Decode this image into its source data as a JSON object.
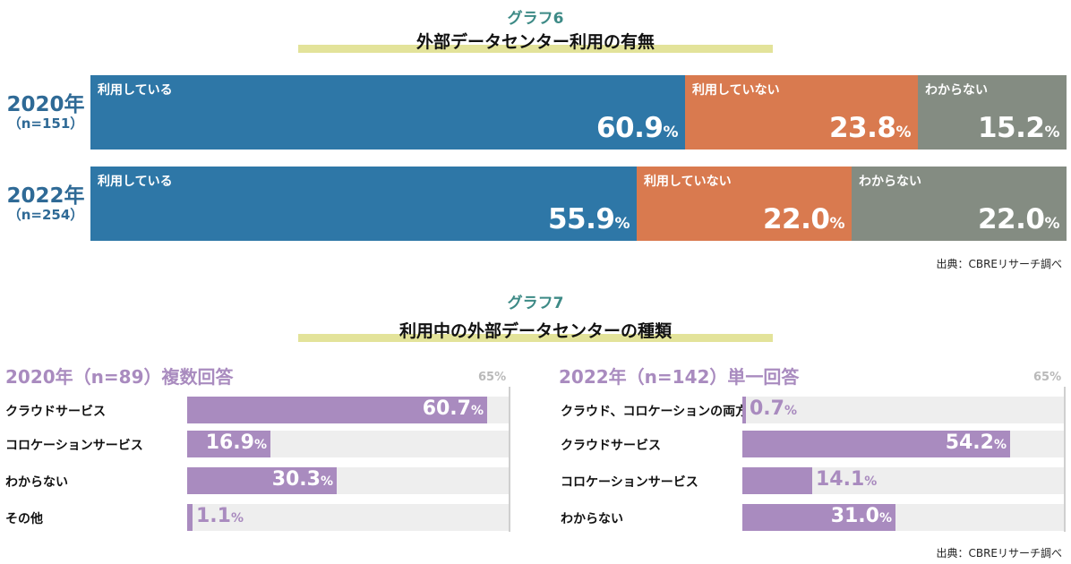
{
  "graph6": {
    "label": "グラフ6",
    "title": "外部データセンター利用の有無",
    "source": "出典：CBREリサーチ調べ"
  },
  "graph7": {
    "label": "グラフ7",
    "title": "利用中の外部データセンターの種類",
    "source": "出典：CBREリサーチ調べ"
  },
  "chart_data": [
    {
      "type": "bar",
      "stacked": true,
      "orientation": "horizontal",
      "title": "外部データセンター利用の有無",
      "categories": [
        "2020年",
        "2022年"
      ],
      "sample_sizes": [
        "（n=151）",
        "（n=254）"
      ],
      "unit": "%",
      "series": [
        {
          "name": "利用している",
          "values": [
            60.9,
            55.9
          ],
          "color": "#2e77a7"
        },
        {
          "name": "利用していない",
          "values": [
            23.8,
            22.0
          ],
          "color": "#d97a4f"
        },
        {
          "name": "わからない",
          "values": [
            15.2,
            22.0
          ],
          "color": "#848c82"
        }
      ]
    },
    {
      "type": "bar",
      "orientation": "horizontal",
      "title": "2020年（n=89）複数回答",
      "max_label": "65%",
      "xlim": [
        0,
        65
      ],
      "unit": "%",
      "color": "#a98bbf",
      "categories": [
        "クラウドサービス",
        "コロケーションサービス",
        "わからない",
        "その他"
      ],
      "values": [
        60.7,
        16.9,
        30.3,
        1.1
      ]
    },
    {
      "type": "bar",
      "orientation": "horizontal",
      "title": "2022年（n=142）単一回答",
      "max_label": "65%",
      "xlim": [
        0,
        65
      ],
      "unit": "%",
      "color": "#a98bbf",
      "categories": [
        "クラウド、コロケーションの両方",
        "クラウドサービス",
        "コロケーションサービス",
        "わからない"
      ],
      "values": [
        0.7,
        54.2,
        14.1,
        31.0
      ]
    }
  ]
}
